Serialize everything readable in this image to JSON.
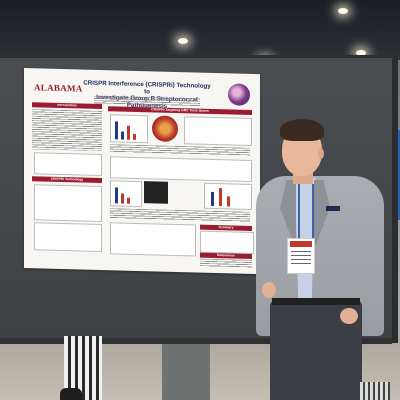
{
  "poster": {
    "logo": "ALABAMA",
    "title_line1": "CRISPR Interference (CRISPRi) Technology to",
    "title_line2": "Investigate Group B Streptococcal Pathogenesis",
    "sections": {
      "introduction": "Introduction",
      "crispr_targeting": "CRISPRi Targeting GBS Toxin Genes",
      "technology": "CRISPRi Technology",
      "summary": "Summary",
      "references": "References"
    }
  }
}
